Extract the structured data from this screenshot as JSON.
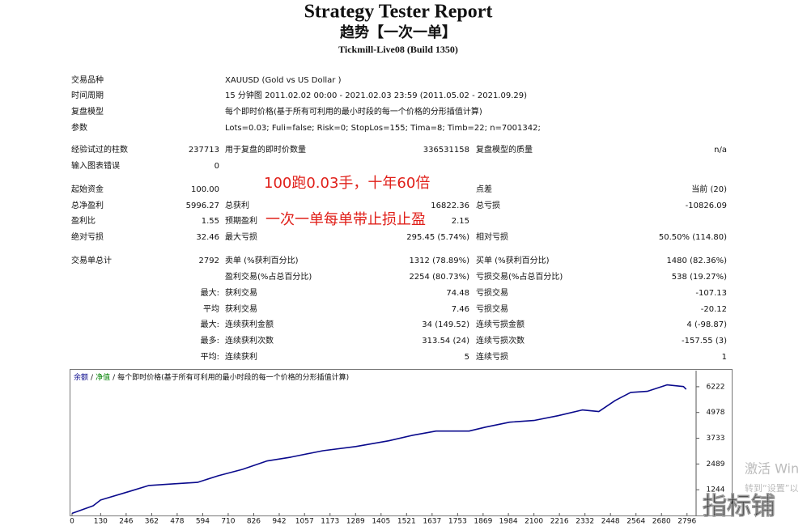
{
  "header": {
    "title": "Strategy Tester Report",
    "subtitle": "趋势【一次一单】",
    "server": "Tickmill-Live08 (Build 1350)"
  },
  "info": [
    [
      "交易品种",
      "XAUUSD (Gold vs US Dollar )"
    ],
    [
      "时间周期",
      "15 分钟图 2011.02.02 00:00 - 2021.02.03 23:59 (2011.05.02 - 2021.09.29)"
    ],
    [
      "复盘模型",
      "每个即时价格(基于所有可利用的最小时段的每一个价格的分形插值计算)"
    ],
    [
      "参数",
      "Lots=0.03; Fuli=false; Risk=0; StopLos=155; Tima=8; Timb=22; n=7001342;"
    ]
  ],
  "stats": [
    [
      "经验试过的柱数",
      "237713",
      "用于复盘的即时价数量",
      "336531158",
      "复盘模型的质量",
      "n/a"
    ],
    [
      "输入图表错误",
      "0",
      null,
      null,
      null,
      null
    ],
    [
      "起始资金",
      "100.00",
      null,
      null,
      "点差",
      "当前 (20)"
    ],
    [
      "总净盈利",
      "5996.27",
      "总获利",
      "16822.36",
      "总亏损",
      "-10826.09"
    ],
    [
      "盈利比",
      "1.55",
      "预期盈利",
      "2.15",
      null,
      null
    ],
    [
      "绝对亏损",
      "32.46",
      "最大亏损",
      "295.45 (5.74%)",
      "相对亏损",
      "50.50% (114.80)"
    ],
    [
      "交易单总计",
      "2792",
      "卖单 (%获利百分比)",
      "1312 (78.89%)",
      "买单 (%获利百分比)",
      "1480 (82.36%)"
    ],
    [
      null,
      null,
      "盈利交易(%占总百分比)",
      "2254 (80.73%)",
      "亏损交易(%占总百分比)",
      "538 (19.27%)"
    ],
    [
      null,
      "最大:",
      "获利交易",
      "74.48",
      "亏损交易",
      "-107.13"
    ],
    [
      null,
      "平均",
      "获利交易",
      "7.46",
      "亏损交易",
      "-20.12"
    ],
    [
      null,
      "最大:",
      "连续获利金额",
      "34 (149.52)",
      "连续亏损金额",
      "4 (-98.87)"
    ],
    [
      null,
      "最多:",
      "连续获利次数",
      "313.54 (24)",
      "连续亏损次数",
      "-157.55 (3)"
    ],
    [
      null,
      "平均:",
      "连续获利",
      "5",
      "连续亏损",
      "1"
    ]
  ],
  "annotations": [
    "100跑0.03手，十年60倍",
    "一次一单每单带止损止盈"
  ],
  "chart_data": {
    "type": "line",
    "x": [
      0,
      96,
      130,
      260,
      350,
      460,
      570,
      665,
      775,
      885,
      995,
      1140,
      1290,
      1440,
      1550,
      1655,
      1805,
      1880,
      1990,
      2100,
      2210,
      2320,
      2395,
      2470,
      2540,
      2615,
      2705,
      2780,
      2792
    ],
    "series": [
      {
        "name": "余额",
        "color": "#0a0a8c",
        "values": [
          100,
          470,
          745,
          1160,
          1450,
          1530,
          1600,
          1920,
          2230,
          2630,
          2820,
          3130,
          3330,
          3610,
          3880,
          4080,
          4080,
          4270,
          4510,
          4590,
          4820,
          5100,
          5020,
          5560,
          5950,
          6000,
          6310,
          6230,
          6096
        ]
      }
    ],
    "separator": "/",
    "equity_name": "净值",
    "equity_color": "#008000",
    "model_note": "每个即时价格(基于所有可利用的最小时段的每一个价格的分形插值计算)",
    "xlim": [
      0,
      2830
    ],
    "xticks": [
      0,
      130,
      246,
      362,
      478,
      594,
      710,
      826,
      942,
      1057,
      1173,
      1289,
      1405,
      1521,
      1637,
      1753,
      1869,
      1984,
      2100,
      2216,
      2332,
      2448,
      2564,
      2680,
      2796
    ],
    "ylim": [
      0,
      7000
    ],
    "yticks": [
      1244,
      2489,
      3733,
      4978,
      6222
    ],
    "grid": false
  },
  "watermark": {
    "activate": "激活 Win",
    "hint": "转到“设置”以",
    "logo": "指标铺"
  }
}
